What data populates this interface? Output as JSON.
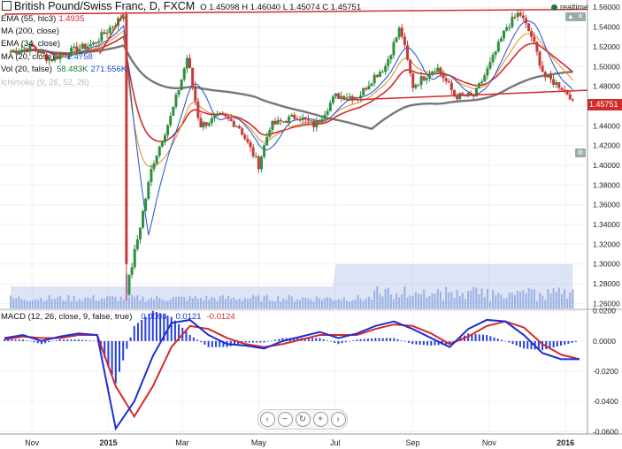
{
  "header": {
    "icon": "collapse-square-icon",
    "symbol": "British Pound/Swiss Franc, D, FXCM",
    "ohlc": "O 1.45098 H 1.46040 L 1.45074 C 1.45751",
    "realtime": "realtime"
  },
  "indicators": [
    {
      "label": "EMA (55, hlc3)",
      "value": "1.4935",
      "value2": "",
      "color": "#d42a2a"
    },
    {
      "label": "MA (200, close)",
      "value": "",
      "value2": "",
      "color": "#666666"
    },
    {
      "label": "EMA (34, close)",
      "value": "",
      "value2": "",
      "color": "#e08a1e"
    },
    {
      "label": "MA (20, close)",
      "value": "1.4758",
      "value2": "",
      "color": "#1a4fd6"
    },
    {
      "label": "Vol (20, false)",
      "value": "58.483K",
      "value2": "271.556K",
      "color": "#1a7a3a"
    },
    {
      "label": "Ichimoku (9, 26, 52, 26)",
      "value": "",
      "value2": "",
      "color": "#bbbbbb"
    }
  ],
  "macd_header": {
    "label": "MACD (12, 26, close, 9, false, true)",
    "v1": "0.0003",
    "v2": "0.0121",
    "v3": "-0.0124"
  },
  "price_tag": "1.45751",
  "icons": {
    "settings": "gear-icon",
    "zoom_out": "zoom-out-icon",
    "zoom_in": "zoom-in-icon",
    "reset": "reset-icon",
    "scroll_left": "chevron-left-icon",
    "scroll_right": "chevron-right-icon"
  },
  "colors": {
    "candle_up": "#2f8f3f",
    "candle_down": "#c83a3a",
    "ema55": "#d42a2a",
    "ma200": "#777777",
    "ema34": "#e08a1e",
    "ma20": "#1a4fd6",
    "macd": "#1a2fd6",
    "signal": "#d42a2a",
    "hist": "#2740d9",
    "volume": "#7a98d8",
    "trendline": "#d42a2a"
  },
  "chart_data": [
    {
      "type": "candlestick",
      "title": "British Pound/Swiss Franc, D, FXCM",
      "x_ticks": [
        "Nov",
        "2015",
        "Mar",
        "May",
        "Jul",
        "Sep",
        "Nov",
        "2016"
      ],
      "y_ticks": [
        "1.56000",
        "1.54000",
        "1.52000",
        "1.50000",
        "1.48000",
        "1.46000",
        "1.44000",
        "1.42000",
        "1.40000",
        "1.38000",
        "1.36000",
        "1.34000",
        "1.32000",
        "1.30000",
        "1.28000",
        "1.26000"
      ],
      "ylim": [
        1.255,
        1.562
      ],
      "price_path": [
        [
          "2014-10-15",
          1.515
        ],
        [
          "2014-11-01",
          1.52
        ],
        [
          "2014-11-15",
          1.507
        ],
        [
          "2014-12-01",
          1.515
        ],
        [
          "2014-12-20",
          1.523
        ],
        [
          "2015-01-14",
          1.553
        ],
        [
          "2015-01-15",
          1.27
        ],
        [
          "2015-01-20",
          1.3
        ],
        [
          "2015-01-25",
          1.33
        ],
        [
          "2015-02-05",
          1.4
        ],
        [
          "2015-02-20",
          1.45
        ],
        [
          "2015-03-01",
          1.49
        ],
        [
          "2015-03-05",
          1.51
        ],
        [
          "2015-03-15",
          1.44
        ],
        [
          "2015-04-01",
          1.45
        ],
        [
          "2015-04-15",
          1.44
        ],
        [
          "2015-05-01",
          1.4
        ],
        [
          "2015-05-10",
          1.44
        ],
        [
          "2015-06-01",
          1.45
        ],
        [
          "2015-06-15",
          1.44
        ],
        [
          "2015-07-01",
          1.47
        ],
        [
          "2015-07-20",
          1.47
        ],
        [
          "2015-08-01",
          1.49
        ],
        [
          "2015-08-10",
          1.5
        ],
        [
          "2015-08-22",
          1.54
        ],
        [
          "2015-09-01",
          1.48
        ],
        [
          "2015-09-20",
          1.5
        ],
        [
          "2015-10-05",
          1.47
        ],
        [
          "2015-10-20",
          1.47
        ],
        [
          "2015-11-01",
          1.5
        ],
        [
          "2015-11-15",
          1.54
        ],
        [
          "2015-11-25",
          1.555
        ],
        [
          "2015-12-05",
          1.53
        ],
        [
          "2015-12-15",
          1.49
        ],
        [
          "2015-12-28",
          1.48
        ],
        [
          "2016-01-05",
          1.47
        ],
        [
          "2016-01-08",
          1.45751
        ]
      ],
      "volume_zones": "mostly flat low volume with higher bars in Aug-Dec 2015"
    },
    {
      "type": "line",
      "title": "MACD (12, 26, close, 9, false, true)",
      "y_ticks": [
        "0.0200",
        "0.0000",
        "-0.0200",
        "-0.0400",
        "-0.0600"
      ],
      "ylim": [
        -0.061,
        0.021
      ],
      "series": [
        {
          "name": "MACD",
          "values": [
            0.002,
            0.004,
            0.0,
            0.003,
            0.005,
            0.004,
            -0.058,
            -0.04,
            -0.01,
            0.012,
            0.014,
            0.004,
            -0.002,
            -0.003,
            -0.005,
            0.0,
            0.003,
            0.006,
            0.002,
            0.005,
            0.01,
            0.013,
            0.008,
            0.002,
            -0.004,
            0.008,
            0.014,
            0.013,
            0.004,
            -0.008,
            -0.012,
            -0.012
          ]
        },
        {
          "name": "Signal",
          "values": [
            0.001,
            0.003,
            0.002,
            0.002,
            0.004,
            0.004,
            -0.03,
            -0.05,
            -0.03,
            -0.004,
            0.01,
            0.008,
            0.002,
            -0.002,
            -0.004,
            -0.002,
            0.001,
            0.004,
            0.004,
            0.004,
            0.008,
            0.011,
            0.01,
            0.005,
            -0.002,
            0.003,
            0.01,
            0.013,
            0.009,
            -0.002,
            -0.009,
            -0.012
          ]
        }
      ]
    }
  ]
}
